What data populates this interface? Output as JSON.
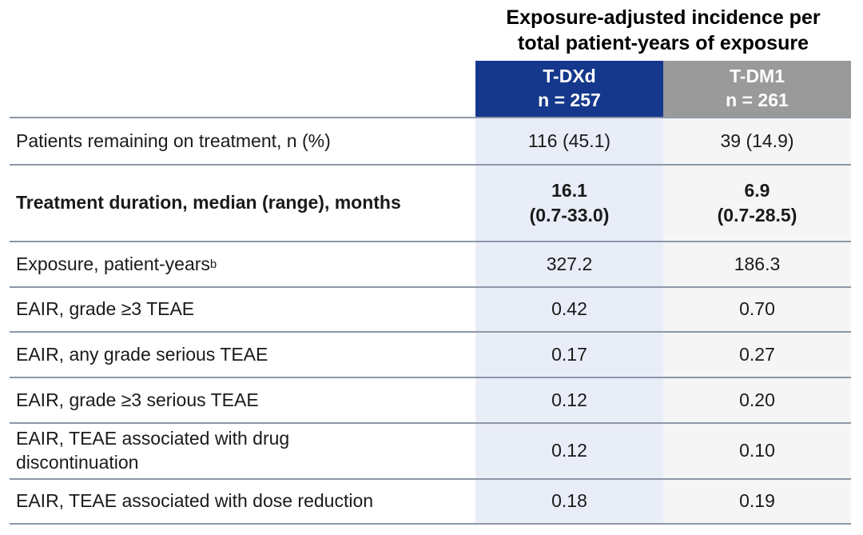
{
  "table": {
    "spanner_header": "Exposure-adjusted incidence per\ntotal patient-years of exposure",
    "columns": [
      {
        "id": "tdxd",
        "drug": "T-DXd",
        "n": "n = 257",
        "header_bg": "#15388c",
        "body_bg": "#e9edf8"
      },
      {
        "id": "tdm1",
        "drug": "T-DM1",
        "n": "n = 261",
        "header_bg": "#9a9a9a",
        "body_bg": "#f5f5f6"
      }
    ],
    "border_color": "#8d97a8",
    "rows": [
      {
        "label": "Patients remaining on treatment, n (%)",
        "bold": false,
        "values": [
          "116 (45.1)",
          "39 (14.9)"
        ]
      },
      {
        "label": "Treatment duration, median (range), months",
        "bold": true,
        "values": [
          "16.1\n(0.7-33.0)",
          "6.9\n(0.7-28.5)"
        ]
      },
      {
        "label": "Exposure, patient-years",
        "label_superscript": "b",
        "bold": false,
        "values": [
          "327.2",
          "186.3"
        ]
      },
      {
        "label": "EAIR, grade ≥3 TEAE",
        "bold": false,
        "values": [
          "0.42",
          "0.70"
        ]
      },
      {
        "label": "EAIR, any grade serious TEAE",
        "bold": false,
        "values": [
          "0.17",
          "0.27"
        ]
      },
      {
        "label": "EAIR, grade ≥3 serious TEAE",
        "bold": false,
        "values": [
          "0.12",
          "0.20"
        ]
      },
      {
        "label": "EAIR, TEAE associated with drug\ndiscontinuation",
        "bold": false,
        "values": [
          "0.12",
          "0.10"
        ]
      },
      {
        "label": "EAIR, TEAE associated with dose reduction",
        "bold": false,
        "values": [
          "0.18",
          "0.19"
        ]
      }
    ]
  },
  "chart_data": {
    "type": "table",
    "title": "Exposure-adjusted incidence per total patient-years of exposure",
    "columns": [
      "",
      "T-DXd n = 257",
      "T-DM1 n = 261"
    ],
    "rows": [
      [
        "Patients remaining on treatment, n (%)",
        "116 (45.1)",
        "39 (14.9)"
      ],
      [
        "Treatment duration, median (range), months",
        "16.1 (0.7-33.0)",
        "6.9 (0.7-28.5)"
      ],
      [
        "Exposure, patient-yearsb",
        "327.2",
        "186.3"
      ],
      [
        "EAIR, grade ≥3 TEAE",
        "0.42",
        "0.70"
      ],
      [
        "EAIR, any grade serious TEAE",
        "0.17",
        "0.27"
      ],
      [
        "EAIR, grade ≥3 serious TEAE",
        "0.12",
        "0.20"
      ],
      [
        "EAIR, TEAE associated with drug discontinuation",
        "0.12",
        "0.10"
      ],
      [
        "EAIR, TEAE associated with dose reduction",
        "0.18",
        "0.19"
      ]
    ]
  }
}
